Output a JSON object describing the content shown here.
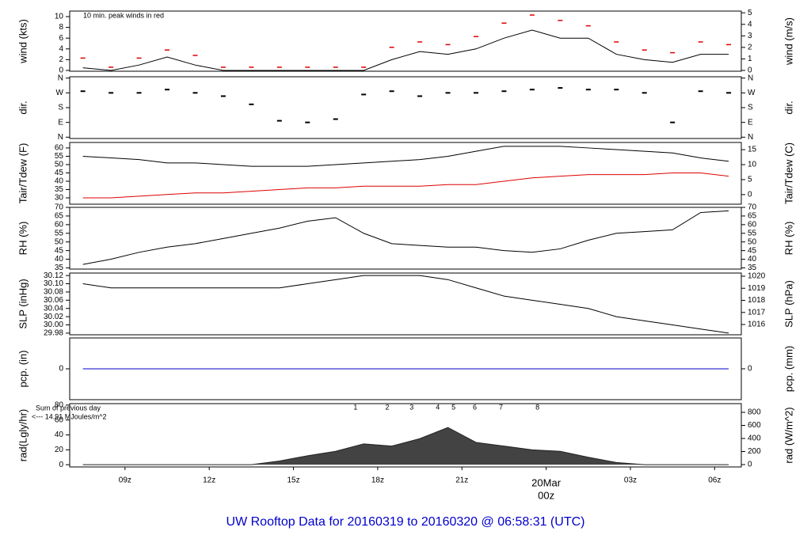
{
  "title": "UW Rooftop Data for 20160319  to  20160320 @ 06:58:31  (UTC)",
  "chart_data": [
    {
      "type": "line",
      "ylabel": "wind (kts)",
      "y2label": "wind (m/s)",
      "xlim": [
        7.03,
        30.95
      ],
      "ylim": [
        -0.15,
        11.03
      ],
      "yticks": [
        0,
        2,
        4,
        6,
        8,
        10
      ],
      "y2lim": [
        -0.07,
        5.15
      ],
      "y2ticks": [
        0,
        1,
        2,
        3,
        4,
        5
      ],
      "annotations": [
        {
          "text": "10 min. peak winds in red",
          "color": "#dd0000"
        }
      ],
      "x": [
        7.5,
        8.5,
        9.5,
        10.5,
        11.5,
        12.5,
        13.5,
        14.5,
        15.5,
        16.5,
        17.5,
        18.5,
        19.5,
        20.5,
        21.5,
        22.5,
        23.5,
        24.5,
        25.5,
        26.5,
        27.5,
        28.5,
        29.5,
        30.5
      ],
      "series": [
        {
          "color": "#000000",
          "style": "line",
          "values": [
            0.5,
            0,
            1,
            2.5,
            1,
            0,
            0,
            0,
            0,
            0,
            0,
            2,
            3.5,
            3,
            4,
            6,
            7.5,
            6,
            6,
            3,
            2,
            1.5,
            3,
            3
          ]
        },
        {
          "color": "#dd0000",
          "style": "dash",
          "values": [
            2,
            0.3,
            2,
            3.5,
            2.5,
            0.3,
            0.3,
            0.3,
            0.3,
            0.3,
            0.3,
            4,
            5,
            4.5,
            6,
            8.5,
            10,
            9,
            8,
            5,
            3.5,
            3,
            5,
            4.5
          ]
        }
      ]
    },
    {
      "type": "scatter",
      "ylabel": "dir.",
      "y2label": "dir.",
      "xlim": [
        7.03,
        30.95
      ],
      "ylim": [
        -8,
        368
      ],
      "yticks": [
        {
          "value": 360,
          "label": "N"
        },
        {
          "value": 270,
          "label": "W"
        },
        {
          "value": 180,
          "label": "S"
        },
        {
          "value": 90,
          "label": "E"
        },
        {
          "value": 0,
          "label": "N"
        }
      ],
      "y2lim": [
        -8,
        368
      ],
      "y2ticks": [
        {
          "value": 360,
          "label": "N"
        },
        {
          "value": 270,
          "label": "W"
        },
        {
          "value": 180,
          "label": "S"
        },
        {
          "value": 90,
          "label": "E"
        },
        {
          "value": 0,
          "label": "N"
        }
      ],
      "x": [
        7.5,
        8.5,
        9.5,
        10.5,
        11.5,
        12.5,
        13.5,
        14.5,
        15.5,
        16.5,
        17.5,
        18.5,
        19.5,
        20.5,
        21.5,
        22.5,
        23.5,
        24.5,
        25.5,
        26.5,
        27.5,
        28.5,
        29.5,
        30.5
      ],
      "series": [
        {
          "color": "#000000",
          "style": "scatter",
          "values": [
            280,
            270,
            270,
            290,
            270,
            250,
            200,
            100,
            90,
            110,
            260,
            280,
            250,
            270,
            270,
            280,
            290,
            300,
            290,
            290,
            270,
            90,
            280,
            270
          ]
        }
      ]
    },
    {
      "type": "line",
      "ylabel": "Tair/Tdew (F)",
      "y2label": "Tair/Tdew (C)",
      "xlim": [
        7.03,
        30.95
      ],
      "ylim": [
        26.2,
        63.3
      ],
      "yticks": [
        30,
        35,
        40,
        45,
        50,
        55,
        60
      ],
      "y2lim": [
        -3.2,
        17.4
      ],
      "y2ticks": [
        0,
        5,
        10,
        15
      ],
      "x": [
        7.5,
        8.5,
        9.5,
        10.5,
        11.5,
        12.5,
        13.5,
        14.5,
        15.5,
        16.5,
        17.5,
        18.5,
        19.5,
        20.5,
        21.5,
        22.5,
        23.5,
        24.5,
        25.5,
        26.5,
        27.5,
        28.5,
        29.5,
        30.5
      ],
      "series": [
        {
          "color": "#000000",
          "style": "line",
          "values": [
            55,
            54,
            53,
            51,
            51,
            50,
            49,
            49,
            49,
            50,
            51,
            52,
            53,
            55,
            58,
            61,
            61,
            61,
            60,
            59,
            58,
            57,
            54,
            52
          ]
        },
        {
          "color": "#dd0000",
          "style": "line",
          "values": [
            30,
            30,
            31,
            32,
            33,
            33,
            34,
            35,
            36,
            36,
            37,
            37,
            37,
            38,
            38,
            40,
            42,
            43,
            44,
            44,
            44,
            45,
            45,
            43
          ]
        }
      ]
    },
    {
      "type": "line",
      "ylabel": "RH (%)",
      "y2label": "RH (%)",
      "xlim": [
        7.03,
        30.95
      ],
      "ylim": [
        34.3,
        70
      ],
      "yticks": [
        35,
        40,
        45,
        50,
        55,
        60,
        65,
        70
      ],
      "y2lim": [
        34.3,
        70
      ],
      "y2ticks": [
        35,
        40,
        45,
        50,
        55,
        60,
        65,
        70
      ],
      "x": [
        7.5,
        8.5,
        9.5,
        10.5,
        11.5,
        12.5,
        13.5,
        14.5,
        15.5,
        16.5,
        17.5,
        18.5,
        19.5,
        20.5,
        21.5,
        22.5,
        23.5,
        24.5,
        25.5,
        26.5,
        27.5,
        28.5,
        29.5,
        30.5
      ],
      "series": [
        {
          "color": "#000000",
          "style": "line",
          "values": [
            37,
            40,
            44,
            47,
            49,
            52,
            55,
            58,
            62,
            64,
            55,
            49,
            48,
            47,
            47,
            45,
            44,
            46,
            51,
            55,
            56,
            57,
            67,
            68
          ]
        }
      ]
    },
    {
      "type": "line",
      "ylabel": "SLP (inHg)",
      "y2label": "SLP (hPa)",
      "xlim": [
        7.03,
        30.95
      ],
      "ylim": [
        29.976,
        30.126
      ],
      "yticks": [
        29.98,
        {
          "value": 30,
          "label": "30.00"
        },
        30.02,
        30.04,
        30.06,
        30.08,
        {
          "value": 30.1,
          "label": "30.10"
        },
        30.12
      ],
      "y2lim": [
        1015.15,
        1020.26
      ],
      "y2ticks": [
        1016,
        1017,
        1018,
        1019,
        1020
      ],
      "x": [
        7.5,
        8.5,
        9.5,
        10.5,
        11.5,
        12.5,
        13.5,
        14.5,
        15.5,
        16.5,
        17.5,
        18.5,
        19.5,
        20.5,
        21.5,
        22.5,
        23.5,
        24.5,
        25.5,
        26.5,
        27.5,
        28.5,
        29.5,
        30.5
      ],
      "series": [
        {
          "color": "#000000",
          "style": "line",
          "values": [
            30.1,
            30.09,
            30.09,
            30.09,
            30.09,
            30.09,
            30.09,
            30.09,
            30.1,
            30.11,
            30.12,
            30.12,
            30.12,
            30.11,
            30.09,
            30.07,
            30.06,
            30.05,
            30.04,
            30.02,
            30.01,
            30,
            29.99,
            29.98
          ]
        }
      ]
    },
    {
      "type": "line",
      "ylabel": "pcp. (in)",
      "y2label": "pcp. (mm)",
      "xlim": [
        7.03,
        30.95
      ],
      "ylim": [
        -1,
        1
      ],
      "yticks": [
        0
      ],
      "y2lim": [
        -1,
        1
      ],
      "y2ticks": [
        0
      ],
      "x": [
        7.5,
        8.5,
        9.5,
        10.5,
        11.5,
        12.5,
        13.5,
        14.5,
        15.5,
        16.5,
        17.5,
        18.5,
        19.5,
        20.5,
        21.5,
        22.5,
        23.5,
        24.5,
        25.5,
        26.5,
        27.5,
        28.5,
        29.5,
        30.5
      ],
      "series": [
        {
          "color": "#0000cc",
          "style": "line",
          "values": [
            0,
            0,
            0,
            0,
            0,
            0,
            0,
            0,
            0,
            0,
            0,
            0,
            0,
            0,
            0,
            0,
            0,
            0,
            0,
            0,
            0,
            0,
            0,
            0
          ]
        }
      ]
    },
    {
      "type": "area",
      "ylabel": "rad(Lgly/hr)",
      "y2label": "rad (W/m^2)",
      "xlim": [
        7.03,
        30.95
      ],
      "ylim": [
        -3,
        82
      ],
      "yticks": [
        0,
        20,
        40,
        60,
        80
      ],
      "y2lim": [
        -36,
        933
      ],
      "y2ticks": [
        0,
        200,
        400,
        600,
        800
      ],
      "xticks": [
        {
          "value": 9,
          "label": "09z"
        },
        {
          "value": 12,
          "label": "12z"
        },
        {
          "value": 15,
          "label": "15z"
        },
        {
          "value": 18,
          "label": "18z"
        },
        {
          "value": 21,
          "label": "21z"
        },
        {
          "value": 24,
          "label": "00z",
          "color": "#dd0000"
        },
        {
          "value": 27,
          "label": "03z"
        },
        {
          "value": 30,
          "label": "06z"
        }
      ],
      "date_label": "20Mar",
      "annotations": [
        {
          "text": "Sum of previous day",
          "color": "#9900cc"
        },
        {
          "text": "<--- 14.91 MJoules/m^2",
          "color": "#9900cc"
        }
      ],
      "markers": [
        {
          "x": 17.21,
          "label": "1"
        },
        {
          "x": 18.34,
          "label": "2"
        },
        {
          "x": 19.21,
          "label": "3"
        },
        {
          "x": 20.14,
          "label": "4"
        },
        {
          "x": 20.7,
          "label": "5"
        },
        {
          "x": 21.46,
          "label": "6"
        },
        {
          "x": 22.39,
          "label": "7"
        },
        {
          "x": 23.69,
          "label": "8"
        }
      ],
      "marker_color": "#9900cc",
      "x": [
        7.5,
        8.5,
        9.5,
        10.5,
        11.5,
        12.5,
        13.5,
        14.5,
        15.5,
        16.5,
        17.5,
        18.5,
        19.5,
        20.5,
        21.5,
        22.5,
        23.5,
        24.5,
        25.5,
        26.5,
        27.5,
        28.5,
        29.5,
        30.5
      ],
      "series": [
        {
          "color": "#222222",
          "style": "area",
          "values": [
            0,
            0,
            0,
            0,
            0,
            0,
            0,
            5,
            12,
            18,
            28,
            25,
            35,
            50,
            30,
            25,
            20,
            18,
            10,
            3,
            0,
            0,
            0,
            0
          ]
        }
      ]
    }
  ]
}
